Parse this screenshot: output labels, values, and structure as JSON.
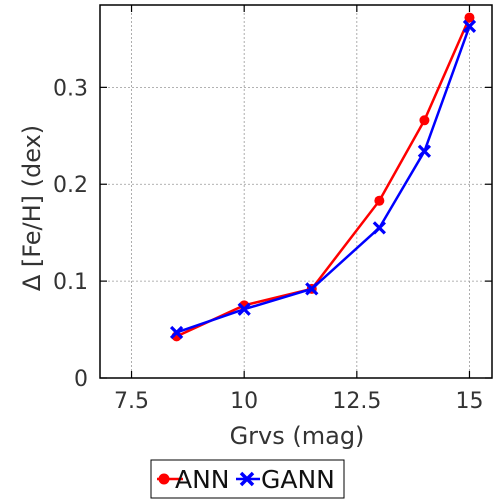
{
  "chart_data": {
    "type": "line",
    "xlabel": "Grvs (mag)",
    "ylabel": "Δ [Fe/H] (dex)",
    "xlim": [
      6.8,
      15.5
    ],
    "ylim": [
      0,
      0.385
    ],
    "xticks": [
      7.5,
      10,
      12.5,
      15
    ],
    "xtick_labels": [
      "7.5",
      "10",
      "12.5",
      "15"
    ],
    "yticks": [
      0,
      0.1,
      0.2,
      0.3
    ],
    "ytick_labels": [
      "0",
      "0.1",
      "0.2",
      "0.3"
    ],
    "grid": true,
    "legend_position": "bottom-center, below axes",
    "series": [
      {
        "name": "ANN",
        "color": "#ff0000",
        "marker": "circle",
        "x": [
          8.5,
          10,
          11.5,
          13,
          14,
          15
        ],
        "y": [
          0.043,
          0.075,
          0.092,
          0.183,
          0.266,
          0.372
        ]
      },
      {
        "name": "GANN",
        "color": "#0000ff",
        "marker": "x",
        "x": [
          8.5,
          10,
          11.5,
          13,
          14,
          15
        ],
        "y": [
          0.047,
          0.071,
          0.092,
          0.155,
          0.234,
          0.363
        ]
      }
    ]
  }
}
